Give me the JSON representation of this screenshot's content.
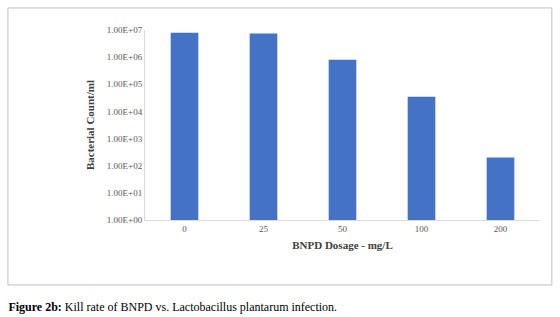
{
  "chart_data": {
    "type": "bar",
    "title": "Figure 2b: Kill rate of BNPD vs. Lactobacillus plantarum infection.",
    "x_label": "BNPD Dosage - mg/L",
    "y_label": "Bacterial Count/ml",
    "categories": [
      "0",
      "25",
      "50",
      "100",
      "200"
    ],
    "values": [
      8000000,
      7500000,
      800000,
      35000,
      200
    ],
    "color": "#4472c4",
    "log": "y",
    "ylim": [
      1,
      10000000
    ],
    "yticks": [
      {
        "value": 1,
        "label": "1.00E+00"
      },
      {
        "value": 10,
        "label": "1.00E+01"
      },
      {
        "value": 100,
        "label": "1.00E+02"
      },
      {
        "value": 1000,
        "label": "1.00E+03"
      },
      {
        "value": 10000,
        "label": "1.00E+04"
      },
      {
        "value": 100000,
        "label": "1.00E+05"
      },
      {
        "value": 1000000,
        "label": "1.00E+06"
      },
      {
        "value": 10000000,
        "label": "1.00E+07"
      }
    ],
    "grid": false
  }
}
